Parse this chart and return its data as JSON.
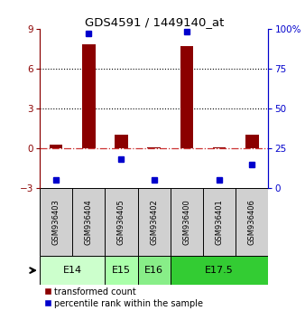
{
  "title": "GDS4591 / 1449140_at",
  "samples": [
    "GSM936403",
    "GSM936404",
    "GSM936405",
    "GSM936402",
    "GSM936400",
    "GSM936401",
    "GSM936406"
  ],
  "transformed_count": [
    0.3,
    7.8,
    1.0,
    0.05,
    7.7,
    0.05,
    1.0
  ],
  "percentile_rank": [
    5,
    97,
    18,
    5,
    98,
    5,
    15
  ],
  "ylim_left": [
    -3,
    9
  ],
  "ylim_right": [
    0,
    100
  ],
  "yticks_left": [
    -3,
    0,
    3,
    6,
    9
  ],
  "yticks_right": [
    0,
    25,
    50,
    75,
    100
  ],
  "ytick_labels_right": [
    "0",
    "25",
    "50",
    "75",
    "100%"
  ],
  "bar_color": "#8B0000",
  "dot_color": "#0000CC",
  "zero_line_color": "#CC3333",
  "hline_color": "#000000",
  "age_groups": [
    {
      "label": "E14",
      "start": 0,
      "end": 2,
      "color": "#ccffcc"
    },
    {
      "label": "E15",
      "start": 2,
      "end": 3,
      "color": "#aaffaa"
    },
    {
      "label": "E16",
      "start": 3,
      "end": 4,
      "color": "#88ee88"
    },
    {
      "label": "E17.5",
      "start": 4,
      "end": 7,
      "color": "#33cc33"
    }
  ],
  "legend_bar_label": "transformed count",
  "legend_dot_label": "percentile rank within the sample",
  "bg_color": "#d0d0d0",
  "plot_bg": "#ffffff"
}
